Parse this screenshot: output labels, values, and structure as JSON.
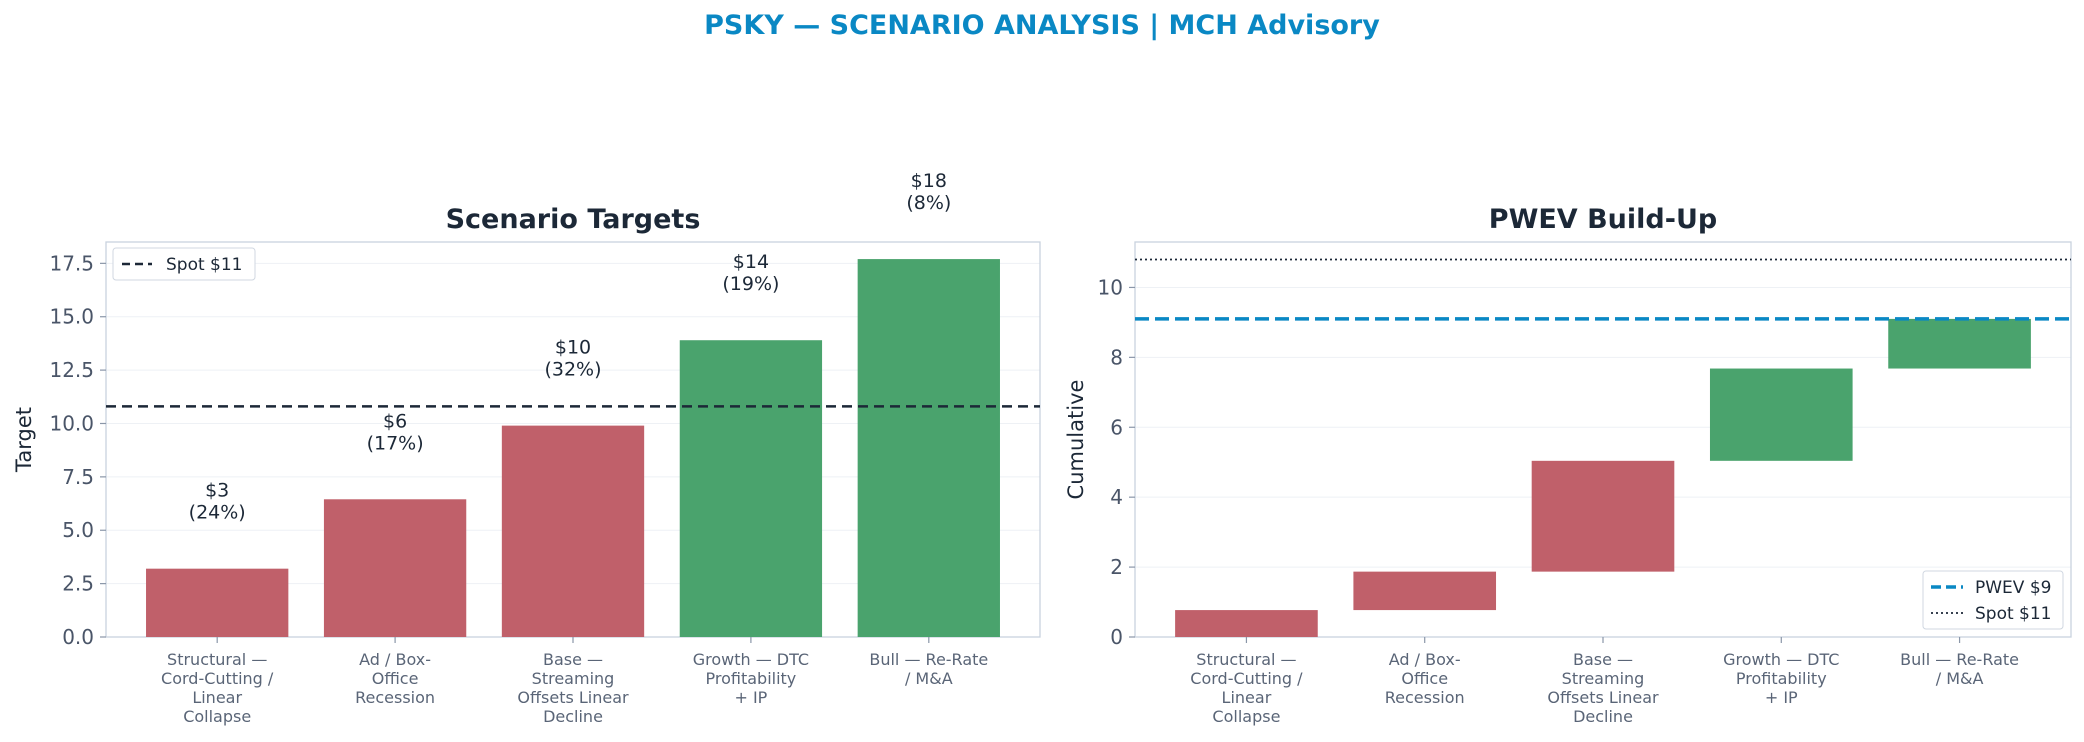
{
  "figure_title": "PSKY — SCENARIO ANALYSIS | MCH Advisory",
  "colors": {
    "bear": "#c0606a",
    "bull": "#4aa36d",
    "pwev": "#0a88c4",
    "spot": "#1c2837",
    "title": "#0a88c4"
  },
  "chart_data": [
    {
      "type": "bar",
      "title": "Scenario Targets",
      "xlabel": "",
      "ylabel": "Target",
      "categories": [
        [
          "Structural —",
          "Cord-Cutting /",
          "Linear",
          "Collapse"
        ],
        [
          "Ad / Box-",
          "Office",
          "Recession"
        ],
        [
          "Base —",
          "Streaming",
          "Offsets Linear",
          "Decline"
        ],
        [
          "Growth — DTC",
          "Profitability",
          "+ IP"
        ],
        [
          "Bull — Re-Rate",
          "/ M&A"
        ]
      ],
      "values": [
        3.2,
        6.45,
        9.9,
        13.9,
        17.7
      ],
      "bar_colors": [
        "bear",
        "bear",
        "bear",
        "bull",
        "bull"
      ],
      "data_labels": [
        [
          "$3",
          "(24%)"
        ],
        [
          "$6",
          "(17%)"
        ],
        [
          "$10",
          "(32%)"
        ],
        [
          "$14",
          "(19%)"
        ],
        [
          "$18",
          "(8%)"
        ]
      ],
      "reference_line": {
        "value": 10.8,
        "label": "Spot $11",
        "style": "dashed"
      },
      "ylim": [
        0,
        18.5
      ],
      "yticks": [
        "0.0",
        "2.5",
        "5.0",
        "7.5",
        "10.0",
        "12.5",
        "15.0",
        "17.5"
      ],
      "ytick_values": [
        0,
        2.5,
        5,
        7.5,
        10,
        12.5,
        15,
        17.5
      ],
      "legend": {
        "position": "top-left",
        "entries": [
          "Spot $11"
        ]
      },
      "grid": true
    },
    {
      "type": "bar",
      "subtype": "waterfall",
      "title": "PWEV Build-Up",
      "xlabel": "",
      "ylabel": "Cumulative",
      "categories": [
        [
          "Structural —",
          "Cord-Cutting /",
          "Linear",
          "Collapse"
        ],
        [
          "Ad / Box-",
          "Office",
          "Recession"
        ],
        [
          "Base —",
          "Streaming",
          "Offsets Linear",
          "Decline"
        ],
        [
          "Growth — DTC",
          "Profitability",
          "+ IP"
        ],
        [
          "Bull — Re-Rate",
          "/ M&A"
        ]
      ],
      "bottoms": [
        0,
        0.77,
        1.87,
        5.04,
        7.68
      ],
      "tops": [
        0.77,
        1.87,
        5.04,
        7.68,
        9.1
      ],
      "bar_colors": [
        "bear",
        "bear",
        "bear",
        "bull",
        "bull"
      ],
      "reference_lines": [
        {
          "value": 9.1,
          "label": "PWEV $9",
          "style": "dashed"
        },
        {
          "value": 10.8,
          "label": "Spot $11",
          "style": "dotted"
        }
      ],
      "ylim": [
        0,
        11.3
      ],
      "yticks": [
        "0",
        "2",
        "4",
        "6",
        "8",
        "10"
      ],
      "ytick_values": [
        0,
        2,
        4,
        6,
        8,
        10
      ],
      "legend": {
        "position": "bottom-right",
        "entries": [
          "PWEV $9",
          "Spot $11"
        ]
      },
      "grid": true
    }
  ]
}
